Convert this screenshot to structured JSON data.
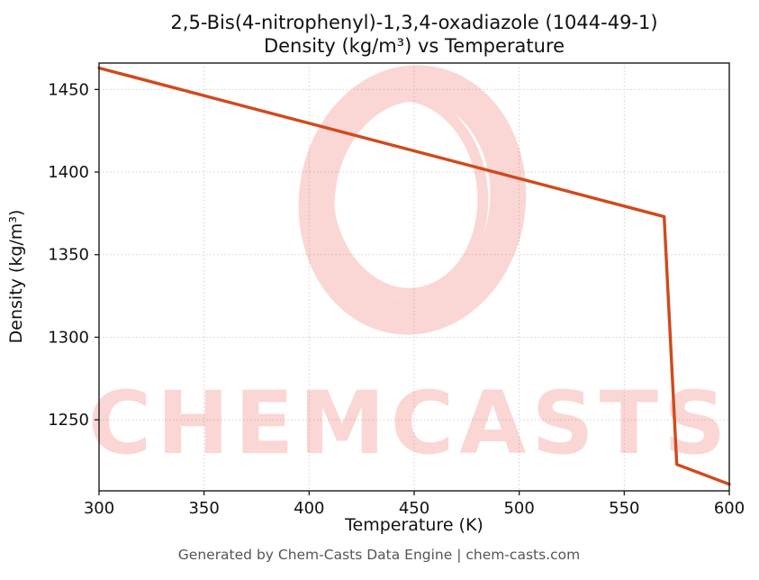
{
  "title": {
    "line1": "2,5-Bis(4-nitrophenyl)-1,3,4-oxadiazole (1044-49-1)",
    "line2": "Density (kg/m³) vs Temperature"
  },
  "footer": {
    "text": "Generated by Chem-Casts Data Engine | chem-casts.com"
  },
  "watermark": {
    "text": "CHEMCASTS",
    "logo": "brush-circle-icon",
    "color": "#e74c3c",
    "opacity": 0.22
  },
  "chart_data": {
    "type": "line",
    "title": "2,5-Bis(4-nitrophenyl)-1,3,4-oxadiazole (1044-49-1) — Density (kg/m³) vs Temperature",
    "xlabel": "Temperature (K)",
    "ylabel": "Density (kg/m³)",
    "xlim": [
      300,
      600
    ],
    "ylim": [
      1207,
      1466
    ],
    "xticks": [
      300,
      350,
      400,
      450,
      500,
      550,
      600
    ],
    "yticks": [
      1250,
      1300,
      1350,
      1400,
      1450
    ],
    "grid": true,
    "line_color": "#d1491c",
    "line_width": 3.4,
    "series": [
      {
        "name": "Density (kg/m³)",
        "x": [
          300,
          569,
          575,
          600
        ],
        "y": [
          1463,
          1373,
          1223,
          1211
        ]
      }
    ]
  }
}
